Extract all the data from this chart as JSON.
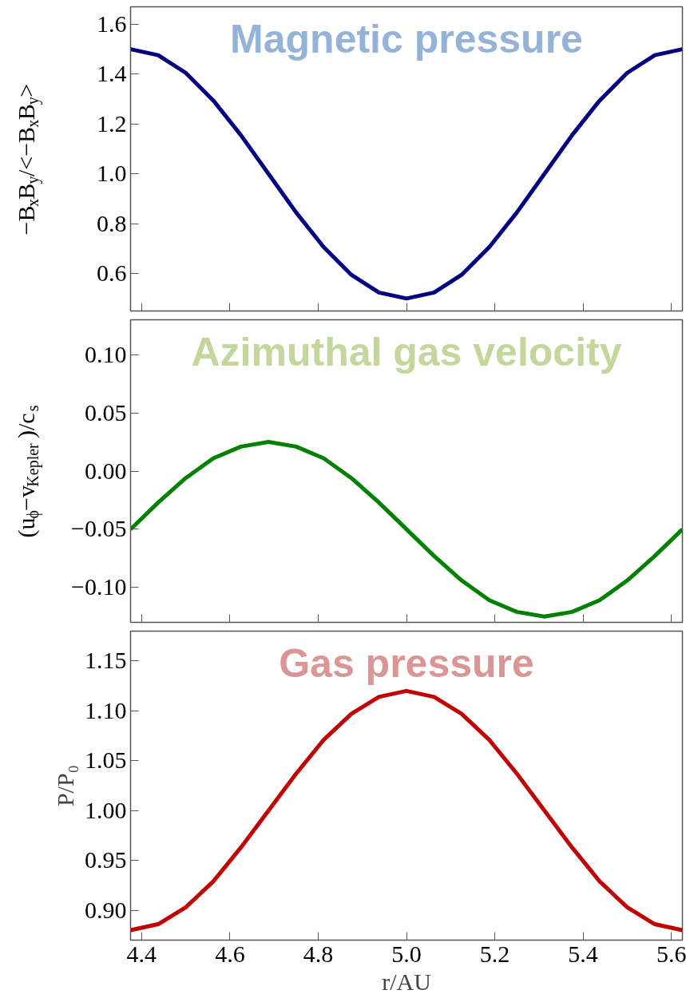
{
  "chart_data": [
    {
      "type": "line",
      "title": "Magnetic pressure",
      "ylabel": "−B$_{x}$B$_{y}$/<−B$_{x}$B$_{y}$>",
      "tick_labels": "y",
      "x": [
        4.375,
        4.4375,
        4.5,
        4.5625,
        4.625,
        4.6875,
        4.75,
        4.8125,
        4.875,
        4.9375,
        5.0,
        5.0625,
        5.125,
        5.1875,
        5.25,
        5.3125,
        5.375,
        5.4375,
        5.5,
        5.5625,
        5.625
      ],
      "series": [
        {
          "color": "#000080",
          "values": [
            1.5,
            1.476,
            1.405,
            1.294,
            1.155,
            1.0,
            0.845,
            0.706,
            0.595,
            0.524,
            0.5,
            0.524,
            0.595,
            0.706,
            0.845,
            1.0,
            1.155,
            1.294,
            1.405,
            1.476,
            1.5
          ]
        }
      ],
      "xlim": [
        4.375,
        5.625
      ],
      "xticks": [
        4.4,
        4.6,
        4.8,
        5,
        5.2,
        5.4,
        5.6
      ],
      "ylim": [
        0.45,
        1.67
      ],
      "yticks": [
        0.6,
        0.8,
        {
          "value": 1,
          "label": "1.0"
        },
        1.2,
        1.4,
        1.6
      ]
    },
    {
      "type": "line",
      "title": "Azimuthal gas velocity",
      "ylabel": "(u$_{ϕ}$−v$_{Kepler}$)/c$_{s}$",
      "tick_labels": "y",
      "x": [
        4.375,
        4.4375,
        4.5,
        4.5625,
        4.625,
        4.6875,
        4.75,
        4.8125,
        4.875,
        4.9375,
        5.0,
        5.0625,
        5.125,
        5.1875,
        5.25,
        5.3125,
        5.375,
        5.4375,
        5.5,
        5.5625,
        5.625
      ],
      "series": [
        {
          "color": "#008000",
          "values": [
            -0.05,
            -0.027,
            -0.006,
            0.011,
            0.021,
            0.025,
            0.021,
            0.011,
            -0.006,
            -0.027,
            -0.05,
            -0.073,
            -0.094,
            -0.111,
            -0.121,
            -0.125,
            -0.121,
            -0.111,
            -0.094,
            -0.073,
            -0.05
          ]
        }
      ],
      "xlim": [
        4.375,
        5.625
      ],
      "xticks": [
        4.4,
        4.6,
        4.8,
        5,
        5.2,
        5.4,
        5.6
      ],
      "ylim": [
        -0.13,
        0.13
      ],
      "yticks": [
        {
          "value": -0.1,
          "label": "−0.10"
        },
        {
          "value": -0.05,
          "label": "−0.05"
        },
        {
          "value": 0,
          "label": "0.00"
        },
        0.05,
        {
          "value": 0.1,
          "label": "0.10"
        }
      ]
    },
    {
      "type": "line",
      "title": "Gas pressure",
      "ylabel": "P/P₀",
      "xlabel": "r/AU",
      "x": [
        4.375,
        4.4375,
        4.5,
        4.5625,
        4.625,
        4.6875,
        4.75,
        4.8125,
        4.875,
        4.9375,
        5.0,
        5.0625,
        5.125,
        5.1875,
        5.25,
        5.3125,
        5.375,
        5.4375,
        5.5,
        5.5625,
        5.625
      ],
      "series": [
        {
          "color": "#c00000",
          "values": [
            0.88,
            0.886,
            0.903,
            0.929,
            0.963,
            1.0,
            1.037,
            1.071,
            1.097,
            1.114,
            1.12,
            1.114,
            1.097,
            1.071,
            1.037,
            1.0,
            0.963,
            0.929,
            0.903,
            0.886,
            0.88
          ]
        }
      ],
      "xlim": [
        4.375,
        5.625
      ],
      "xticks": [
        4.4,
        4.6,
        4.8,
        {
          "value": 5,
          "label": "5.0"
        },
        5.2,
        5.4,
        5.6
      ],
      "ylim": [
        0.87,
        1.18
      ],
      "yticks": [
        {
          "value": 0.9,
          "label": "0.90"
        },
        0.95,
        {
          "value": 1,
          "label": "1.00"
        },
        1.05,
        {
          "value": 1.1,
          "label": "1.10"
        },
        1.15
      ]
    }
  ]
}
